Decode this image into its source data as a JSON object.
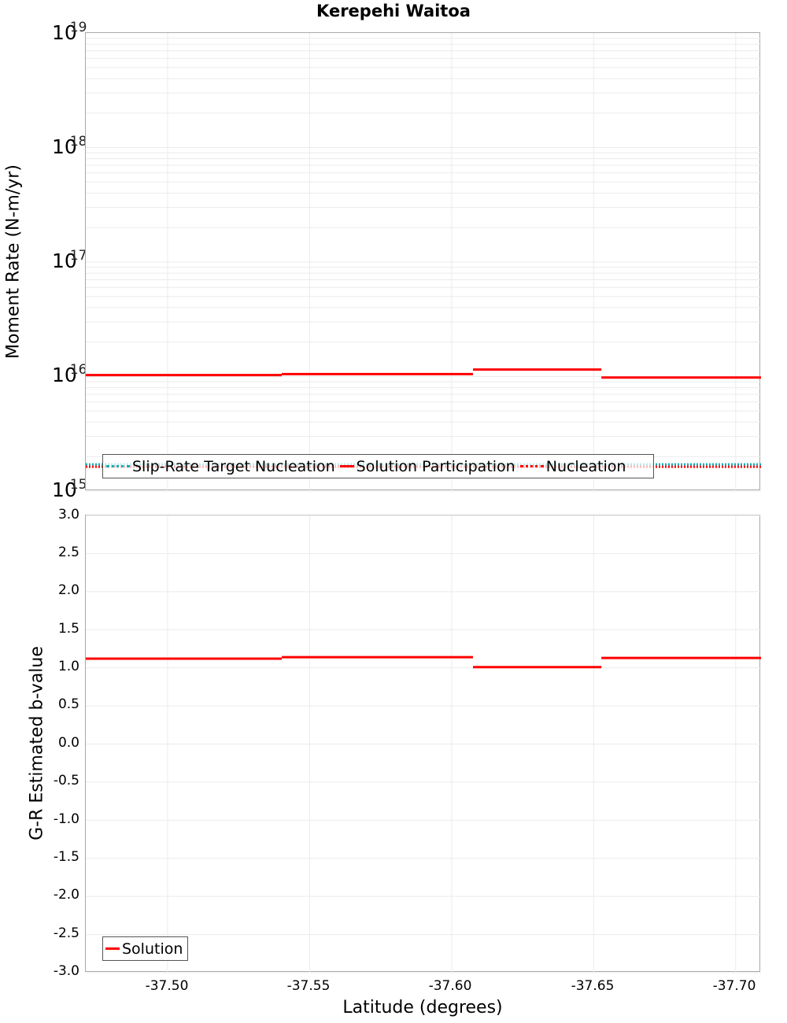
{
  "chart_data": [
    {
      "type": "line",
      "title": "Kerepehi Waitoa",
      "xlabel": "Latitude (degrees)",
      "ylabel": "Moment Rate (N-m/yr)",
      "yscale": "log",
      "ylim": [
        1000000000000000.0,
        1e+19
      ],
      "xlim": [
        -37.4712,
        -37.7089
      ],
      "x_reversed": true,
      "grid": true,
      "ytick_labels": [
        {
          "base": "10",
          "exp": "19",
          "value": 1e+19
        },
        {
          "base": "10",
          "exp": "18",
          "value": 1e+18
        },
        {
          "base": "10",
          "exp": "17",
          "value": 1e+17
        },
        {
          "base": "10",
          "exp": "16",
          "value": 1e+16
        },
        {
          "base": "10",
          "exp": "15",
          "value": 1000000000000000.0
        }
      ],
      "legend_position": "lower-left",
      "series": [
        {
          "name": "Slip-Rate Target Nucleation",
          "style": "dotted",
          "color": "#14b0b6",
          "segments": [
            {
              "x0": -37.4712,
              "x1": -37.7089,
              "y": 1710000000000000.0
            }
          ]
        },
        {
          "name": "Solution Participation",
          "style": "solid",
          "color": "#ff0000",
          "segments": [
            {
              "x0": -37.4712,
              "x1": -37.5402,
              "y": 1.03e+16
            },
            {
              "x0": -37.5402,
              "x1": -37.6075,
              "y": 1.05e+16
            },
            {
              "x0": -37.6075,
              "x1": -37.6527,
              "y": 1.15e+16
            },
            {
              "x0": -37.6527,
              "x1": -37.7089,
              "y": 9800000000000000.0
            }
          ]
        },
        {
          "name": "Nucleation",
          "style": "dotted",
          "color": "#ff0000",
          "segments": [
            {
              "x0": -37.4712,
              "x1": -37.7089,
              "y": 1630000000000000.0
            }
          ]
        }
      ]
    },
    {
      "type": "line",
      "title": "",
      "xlabel": "Latitude (degrees)",
      "ylabel": "G-R Estimated b-value",
      "ylim": [
        -3.0,
        3.0
      ],
      "xlim": [
        -37.4712,
        -37.7089
      ],
      "x_reversed": true,
      "grid": true,
      "yticks": [
        "3.0",
        "2.5",
        "2.0",
        "1.5",
        "1.0",
        "0.5",
        "0.0",
        "-0.5",
        "-1.0",
        "-1.5",
        "-2.0",
        "-2.5",
        "-3.0"
      ],
      "xticks": [
        "-37.50",
        "-37.55",
        "-37.60",
        "-37.65",
        "-37.70"
      ],
      "legend_position": "lower-left",
      "series": [
        {
          "name": "Solution",
          "style": "solid",
          "color": "#ff0000",
          "segments": [
            {
              "x0": -37.4712,
              "x1": -37.5402,
              "y": 1.12
            },
            {
              "x0": -37.5402,
              "x1": -37.6075,
              "y": 1.14
            },
            {
              "x0": -37.6075,
              "x1": -37.6527,
              "y": 1.01
            },
            {
              "x0": -37.6527,
              "x1": -37.7089,
              "y": 1.13
            }
          ]
        }
      ]
    }
  ],
  "title": "Kerepehi Waitoa",
  "top": {
    "ylabel": "Moment Rate (N-m/yr)",
    "yticks": [
      {
        "base": "10",
        "exp": "19"
      },
      {
        "base": "10",
        "exp": "18"
      },
      {
        "base": "10",
        "exp": "17"
      },
      {
        "base": "10",
        "exp": "16"
      },
      {
        "base": "10",
        "exp": "15"
      }
    ],
    "legend": [
      {
        "label": "Slip-Rate Target Nucleation",
        "style": "dotted-cyan"
      },
      {
        "label": "Solution Participation",
        "style": "solid"
      },
      {
        "label": "Nucleation",
        "style": "dotted-red"
      }
    ]
  },
  "bottom": {
    "ylabel": "G-R Estimated b-value",
    "yticks": [
      "3.0",
      "2.5",
      "2.0",
      "1.5",
      "1.0",
      "0.5",
      "0.0",
      "-0.5",
      "-1.0",
      "-1.5",
      "-2.0",
      "-2.5",
      "-3.0"
    ],
    "xticks": [
      "-37.50",
      "-37.55",
      "-37.60",
      "-37.65",
      "-37.70"
    ],
    "xlabel": "Latitude (degrees)",
    "legend": [
      {
        "label": "Solution",
        "style": "solid"
      }
    ]
  },
  "colors": {
    "solution": "#ff0000",
    "target": "#14b0b6",
    "grid": "#ebebeb",
    "frame": "#a8a8a8"
  }
}
